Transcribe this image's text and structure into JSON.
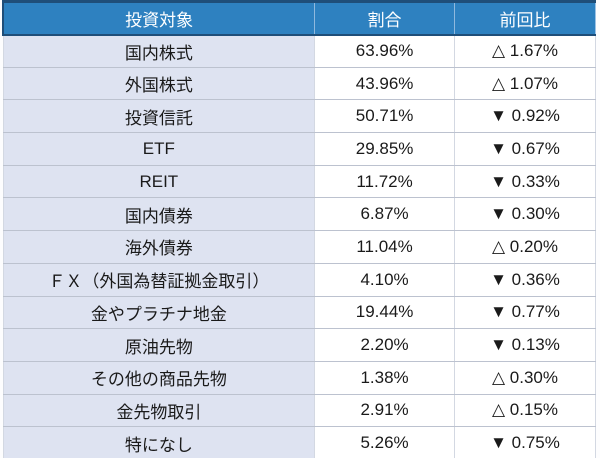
{
  "table": {
    "headers": [
      "投資対象",
      "割合",
      "前回比"
    ],
    "rows": [
      {
        "name": "国内株式",
        "share": "63.96%",
        "direction": "up",
        "change": "1.67%"
      },
      {
        "name": "外国株式",
        "share": "43.96%",
        "direction": "up",
        "change": "1.07%"
      },
      {
        "name": "投資信託",
        "share": "50.71%",
        "direction": "down",
        "change": "0.92%"
      },
      {
        "name": "ETF",
        "share": "29.85%",
        "direction": "down",
        "change": "0.67%"
      },
      {
        "name": "REIT",
        "share": "11.72%",
        "direction": "down",
        "change": "0.33%"
      },
      {
        "name": "国内債券",
        "share": "6.87%",
        "direction": "down",
        "change": "0.30%"
      },
      {
        "name": "海外債券",
        "share": "11.04%",
        "direction": "up",
        "change": "0.20%"
      },
      {
        "name": "ＦＸ（外国為替証拠金取引）",
        "share": "4.10%",
        "direction": "down",
        "change": "0.36%"
      },
      {
        "name": "金やプラチナ地金",
        "share": "19.44%",
        "direction": "down",
        "change": "0.77%"
      },
      {
        "name": "原油先物",
        "share": "2.20%",
        "direction": "down",
        "change": "0.13%"
      },
      {
        "name": "その他の商品先物",
        "share": "1.38%",
        "direction": "up",
        "change": "0.30%"
      },
      {
        "name": "金先物取引",
        "share": "2.91%",
        "direction": "up",
        "change": "0.15%"
      },
      {
        "name": "特になし",
        "share": "5.26%",
        "direction": "down",
        "change": "0.75%"
      }
    ]
  },
  "symbols": {
    "up": "△",
    "down": "▼"
  },
  "colors": {
    "header_bg": "#2e81c0",
    "header_border": "#1f4e79",
    "header_text": "#ffffff",
    "first_column_bg": "#dee3f1",
    "value_column_bg": "#ffffff",
    "row_grid": "#bcc2cf",
    "column_grid": "#d3d8e2",
    "body_text": "#1a1a1a"
  },
  "chart_data": {
    "type": "table",
    "title": "",
    "columns": [
      "投資対象",
      "割合",
      "前回比"
    ],
    "rows": [
      [
        "国内株式",
        "63.96%",
        "△ 1.67%"
      ],
      [
        "外国株式",
        "43.96%",
        "△ 1.07%"
      ],
      [
        "投資信託",
        "50.71%",
        "▼ 0.92%"
      ],
      [
        "ETF",
        "29.85%",
        "▼ 0.67%"
      ],
      [
        "REIT",
        "11.72%",
        "▼ 0.33%"
      ],
      [
        "国内債券",
        "6.87%",
        "▼ 0.30%"
      ],
      [
        "海外債券",
        "11.04%",
        "△ 0.20%"
      ],
      [
        "ＦＸ（外国為替証拠金取引）",
        "4.10%",
        "▼ 0.36%"
      ],
      [
        "金やプラチナ地金",
        "19.44%",
        "▼ 0.77%"
      ],
      [
        "原油先物",
        "2.20%",
        "▼ 0.13%"
      ],
      [
        "その他の商品先物",
        "1.38%",
        "△ 0.30%"
      ],
      [
        "金先物取引",
        "2.91%",
        "△ 0.15%"
      ],
      [
        "特になし",
        "5.26%",
        "▼ 0.75%"
      ]
    ]
  }
}
